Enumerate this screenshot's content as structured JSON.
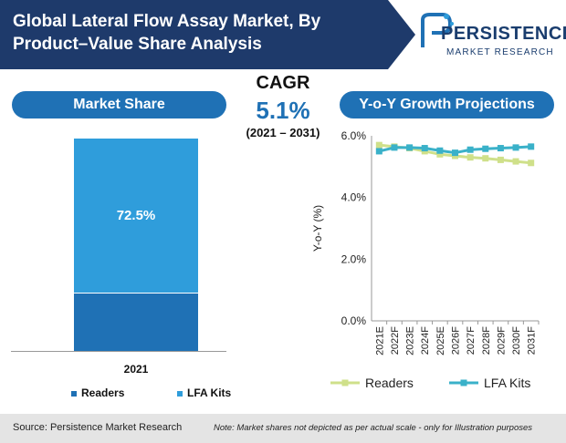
{
  "title": "Global Lateral Flow Assay Market, By Product–Value Share Analysis",
  "logo": {
    "name": "PERSISTENCE",
    "sub": "MARKET RESEARCH"
  },
  "market_share": {
    "heading": "Market Share",
    "year": "2021",
    "lfa_label": "72.5%"
  },
  "cagr": {
    "label": "CAGR",
    "value": "5.1%",
    "period": "(2021 – 2031)"
  },
  "growth": {
    "heading": "Y-o-Y Growth Projections"
  },
  "legend": {
    "readers": "Readers",
    "lfa": "LFA Kits"
  },
  "footer": {
    "source": "Source: Persistence Market Research",
    "note": "Note: Market shares not depicted as per actual scale - only for Illustration purposes"
  },
  "colors": {
    "header": "#1e3a6b",
    "accent": "#1f71b5",
    "readers_bar": "#1f71b5",
    "lfa_bar": "#2f9ddb",
    "readers_line": "#cfe08a",
    "lfa_line": "#3ab1c9"
  },
  "chart_data": [
    {
      "type": "bar",
      "stacked": true,
      "categories": [
        "2021"
      ],
      "series": [
        {
          "name": "Readers",
          "values": [
            27.5
          ]
        },
        {
          "name": "LFA Kits",
          "values": [
            72.5
          ]
        }
      ],
      "data_labels": [
        "",
        "72.5%"
      ],
      "ylim": [
        0,
        100
      ]
    },
    {
      "type": "line",
      "ylabel": "Y-o-Y (%)",
      "x": [
        "2021E",
        "2022F",
        "2023E",
        "2024F",
        "2025E",
        "2026F",
        "2027F",
        "2028F",
        "2029F",
        "2030F",
        "2031F"
      ],
      "yticks": [
        "0.0%",
        "2.0%",
        "4.0%",
        "6.0%"
      ],
      "ylim": [
        0,
        6
      ],
      "grid": false,
      "legend": "bottom",
      "series": [
        {
          "name": "Readers",
          "values": [
            5.7,
            5.65,
            5.6,
            5.5,
            5.4,
            5.35,
            5.3,
            5.27,
            5.22,
            5.17,
            5.12
          ]
        },
        {
          "name": "LFA Kits",
          "values": [
            5.5,
            5.62,
            5.62,
            5.6,
            5.52,
            5.45,
            5.55,
            5.58,
            5.6,
            5.62,
            5.65
          ]
        }
      ]
    }
  ]
}
